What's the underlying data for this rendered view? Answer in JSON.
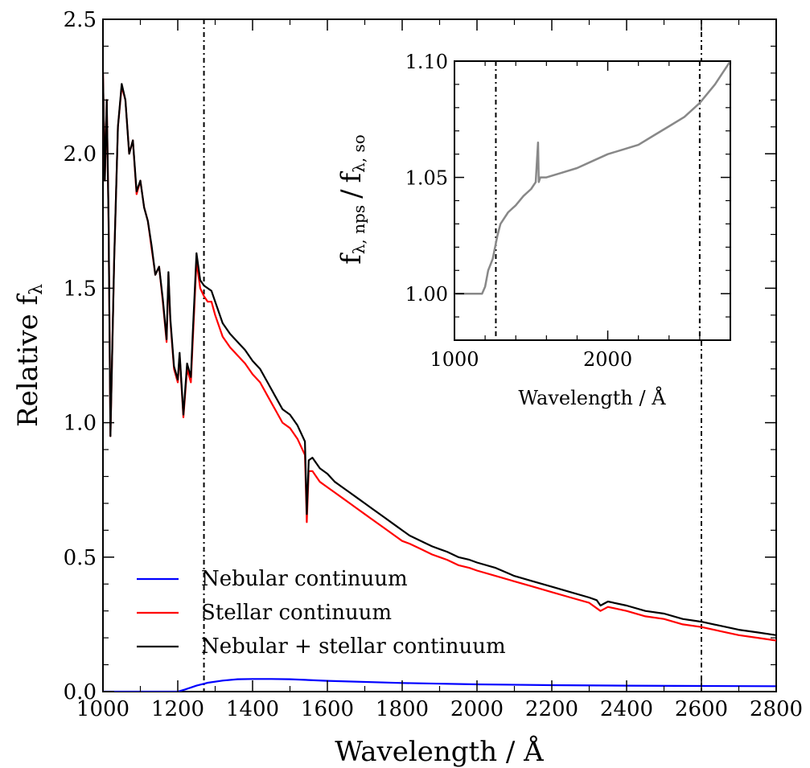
{
  "chart_data": [
    {
      "type": "line",
      "title": "",
      "xlabel": "Wavelength / Å",
      "ylabel_main": "Relative f",
      "ylabel_sub": "λ",
      "xlim": [
        1000,
        2800
      ],
      "ylim": [
        0,
        2.5
      ],
      "xticks": [
        1000,
        1200,
        1400,
        1600,
        1800,
        2000,
        2200,
        2400,
        2600,
        2800
      ],
      "xtick_labels": [
        "1000",
        "1200",
        "1400",
        "1600",
        "1800",
        "2000",
        "2200",
        "2400",
        "2600",
        "2800"
      ],
      "yticks": [
        0,
        0.5,
        1.0,
        1.5,
        2.0,
        2.5
      ],
      "ytick_labels": [
        "0.0",
        "0.5",
        "1.0",
        "1.5",
        "2.0",
        "2.5"
      ],
      "vlines": [
        1270,
        2600
      ],
      "legend_position": "lower-left",
      "series": [
        {
          "name": "Nebular continuum",
          "color": "#0000ff",
          "x": [
            1000,
            1150,
            1200,
            1220,
            1250,
            1280,
            1320,
            1360,
            1400,
            1450,
            1500,
            1600,
            1800,
            2000,
            2200,
            2400,
            2600,
            2800
          ],
          "y": [
            0,
            0,
            0,
            0.008,
            0.022,
            0.033,
            0.041,
            0.046,
            0.047,
            0.047,
            0.046,
            0.04,
            0.032,
            0.027,
            0.024,
            0.022,
            0.021,
            0.02
          ]
        },
        {
          "name": "Stellar continuum",
          "color": "#ff0000",
          "x": [
            1000,
            1005,
            1010,
            1015,
            1020,
            1030,
            1040,
            1050,
            1060,
            1070,
            1080,
            1090,
            1100,
            1110,
            1120,
            1130,
            1140,
            1150,
            1160,
            1170,
            1175,
            1180,
            1190,
            1200,
            1205,
            1215,
            1225,
            1235,
            1240,
            1250,
            1260,
            1270,
            1280,
            1290,
            1300,
            1320,
            1340,
            1360,
            1380,
            1400,
            1420,
            1440,
            1460,
            1480,
            1500,
            1520,
            1540,
            1545,
            1550,
            1560,
            1580,
            1600,
            1620,
            1640,
            1660,
            1680,
            1700,
            1720,
            1750,
            1780,
            1800,
            1820,
            1850,
            1880,
            1900,
            1920,
            1950,
            1980,
            2000,
            2050,
            2100,
            2150,
            2200,
            2250,
            2300,
            2320,
            2330,
            2350,
            2400,
            2450,
            2500,
            2550,
            2600,
            2650,
            2700,
            2750,
            2800
          ],
          "y": [
            2.3,
            1.9,
            2.2,
            1.75,
            0.95,
            1.6,
            2.1,
            2.25,
            2.2,
            2.0,
            2.05,
            1.85,
            1.9,
            1.8,
            1.75,
            1.65,
            1.55,
            1.58,
            1.45,
            1.3,
            1.55,
            1.38,
            1.2,
            1.15,
            1.25,
            1.02,
            1.2,
            1.15,
            1.3,
            1.6,
            1.5,
            1.47,
            1.45,
            1.45,
            1.4,
            1.32,
            1.28,
            1.25,
            1.22,
            1.18,
            1.15,
            1.1,
            1.05,
            1.0,
            0.98,
            0.94,
            0.88,
            0.63,
            0.82,
            0.82,
            0.78,
            0.76,
            0.74,
            0.72,
            0.7,
            0.68,
            0.66,
            0.64,
            0.61,
            0.58,
            0.56,
            0.55,
            0.53,
            0.51,
            0.5,
            0.49,
            0.47,
            0.46,
            0.45,
            0.43,
            0.41,
            0.39,
            0.37,
            0.35,
            0.33,
            0.31,
            0.3,
            0.315,
            0.3,
            0.28,
            0.27,
            0.25,
            0.24,
            0.225,
            0.21,
            0.2,
            0.19
          ]
        },
        {
          "name": "Nebular + stellar continuum",
          "color": "#000000",
          "x": [
            1000,
            1005,
            1010,
            1015,
            1020,
            1030,
            1040,
            1050,
            1060,
            1070,
            1080,
            1090,
            1100,
            1110,
            1120,
            1130,
            1140,
            1150,
            1160,
            1170,
            1175,
            1180,
            1190,
            1200,
            1205,
            1215,
            1225,
            1235,
            1240,
            1250,
            1260,
            1270,
            1280,
            1290,
            1300,
            1320,
            1340,
            1360,
            1380,
            1400,
            1420,
            1440,
            1460,
            1480,
            1500,
            1520,
            1540,
            1545,
            1550,
            1560,
            1580,
            1600,
            1620,
            1640,
            1660,
            1680,
            1700,
            1720,
            1750,
            1780,
            1800,
            1820,
            1850,
            1880,
            1900,
            1920,
            1950,
            1980,
            2000,
            2050,
            2100,
            2150,
            2200,
            2250,
            2300,
            2320,
            2330,
            2350,
            2400,
            2450,
            2500,
            2550,
            2600,
            2650,
            2700,
            2750,
            2800
          ],
          "y": [
            2.3,
            1.9,
            2.2,
            1.75,
            0.95,
            1.6,
            2.1,
            2.26,
            2.2,
            2.0,
            2.05,
            1.86,
            1.9,
            1.8,
            1.75,
            1.66,
            1.55,
            1.58,
            1.46,
            1.31,
            1.56,
            1.39,
            1.21,
            1.16,
            1.26,
            1.03,
            1.22,
            1.17,
            1.33,
            1.63,
            1.53,
            1.51,
            1.5,
            1.49,
            1.45,
            1.37,
            1.33,
            1.3,
            1.27,
            1.23,
            1.2,
            1.15,
            1.1,
            1.05,
            1.03,
            0.99,
            0.93,
            0.66,
            0.86,
            0.87,
            0.83,
            0.81,
            0.78,
            0.76,
            0.74,
            0.72,
            0.7,
            0.68,
            0.65,
            0.62,
            0.6,
            0.58,
            0.56,
            0.54,
            0.53,
            0.52,
            0.5,
            0.49,
            0.48,
            0.46,
            0.43,
            0.41,
            0.39,
            0.37,
            0.35,
            0.34,
            0.32,
            0.335,
            0.32,
            0.3,
            0.29,
            0.27,
            0.26,
            0.245,
            0.23,
            0.22,
            0.21
          ]
        }
      ]
    },
    {
      "type": "line",
      "title": "",
      "xlabel": "Wavelength / Å",
      "ylabel_num_main": "f",
      "ylabel_num_sub": "λ, nps",
      "ylabel_sep": "/",
      "ylabel_den_main": "f",
      "ylabel_den_sub": "λ, so",
      "xlim": [
        1000,
        2800
      ],
      "ylim": [
        0.98,
        1.1
      ],
      "xticks": [
        1000,
        2000
      ],
      "xtick_labels": [
        "1000",
        "2000"
      ],
      "yticks": [
        1.0,
        1.05,
        1.1
      ],
      "ytick_labels": [
        "1.00",
        "1.05",
        "1.10"
      ],
      "vlines": [
        1270,
        2600
      ],
      "series": [
        {
          "color": "#888888",
          "x": [
            1000,
            1100,
            1150,
            1180,
            1200,
            1220,
            1250,
            1280,
            1300,
            1350,
            1400,
            1450,
            1500,
            1530,
            1545,
            1550,
            1560,
            1600,
            1700,
            1800,
            1900,
            2000,
            2100,
            2200,
            2300,
            2400,
            2500,
            2600,
            2700,
            2800
          ],
          "y": [
            1.0,
            1.0,
            1.0,
            1.0,
            1.003,
            1.01,
            1.015,
            1.025,
            1.03,
            1.035,
            1.038,
            1.042,
            1.045,
            1.048,
            1.065,
            1.048,
            1.05,
            1.05,
            1.052,
            1.054,
            1.057,
            1.06,
            1.062,
            1.064,
            1.068,
            1.072,
            1.076,
            1.082,
            1.09,
            1.1
          ]
        }
      ]
    }
  ]
}
